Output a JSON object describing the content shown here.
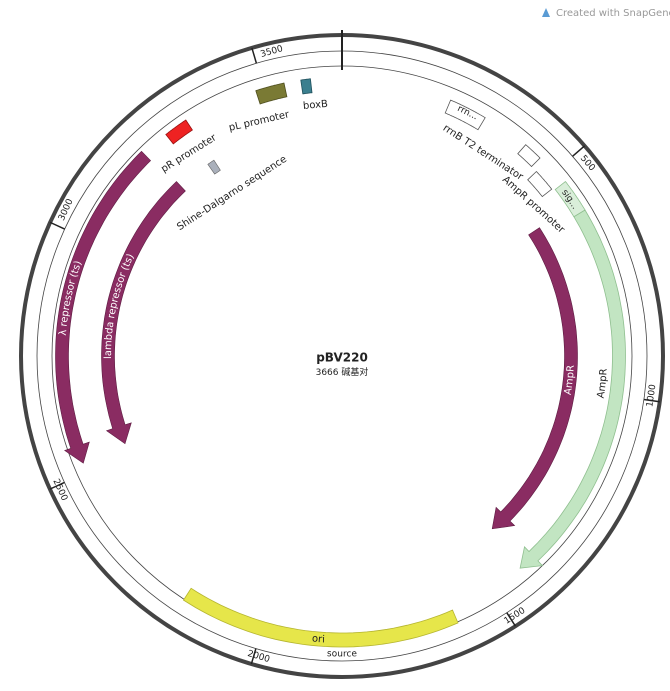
{
  "header": {
    "watermark": "Created with SnapGene"
  },
  "map": {
    "name": "pBV220",
    "length": 3666,
    "unit": "碱基对",
    "ticks": [
      500,
      1000,
      1500,
      2000,
      2500,
      3000,
      3500
    ]
  },
  "features": [
    {
      "label": "λ repressor (ts)"
    },
    {
      "label": "lambda repressor (ts)"
    },
    {
      "label": "AmpR"
    },
    {
      "label": "AmpR"
    },
    {
      "label": "sig..."
    },
    {
      "label": "ori"
    },
    {
      "label": "source"
    },
    {
      "label": "pR promoter"
    },
    {
      "label": "pL promoter"
    },
    {
      "label": "boxB"
    },
    {
      "label": "Shine-Dalgarno sequence"
    },
    {
      "label": "rrnB T2 terminator",
      "short": "rrn..."
    },
    {
      "label": "AmpR promoter"
    }
  ]
}
